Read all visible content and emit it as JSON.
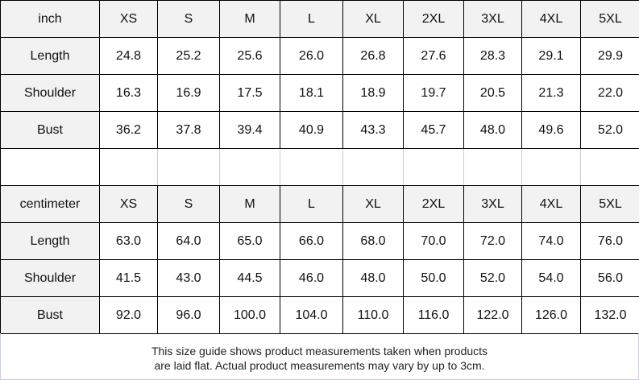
{
  "sizes": [
    "XS",
    "S",
    "M",
    "L",
    "XL",
    "2XL",
    "3XL",
    "4XL",
    "5XL"
  ],
  "inch": {
    "unit": "inch",
    "rows": [
      {
        "label": "Length",
        "values": [
          "24.8",
          "25.2",
          "25.6",
          "26.0",
          "26.8",
          "27.6",
          "28.3",
          "29.1",
          "29.9"
        ]
      },
      {
        "label": "Shoulder",
        "values": [
          "16.3",
          "16.9",
          "17.5",
          "18.1",
          "18.9",
          "19.7",
          "20.5",
          "21.3",
          "22.0"
        ]
      },
      {
        "label": "Bust",
        "values": [
          "36.2",
          "37.8",
          "39.4",
          "40.9",
          "43.3",
          "45.7",
          "48.0",
          "49.6",
          "52.0"
        ]
      }
    ]
  },
  "cm": {
    "unit": "centimeter",
    "rows": [
      {
        "label": "Length",
        "values": [
          "63.0",
          "64.0",
          "65.0",
          "66.0",
          "68.0",
          "70.0",
          "72.0",
          "74.0",
          "76.0"
        ]
      },
      {
        "label": "Shoulder",
        "values": [
          "41.5",
          "43.0",
          "44.5",
          "46.0",
          "48.0",
          "50.0",
          "52.0",
          "54.0",
          "56.0"
        ]
      },
      {
        "label": "Bust",
        "values": [
          "92.0",
          "96.0",
          "100.0",
          "104.0",
          "110.0",
          "116.0",
          "122.0",
          "126.0",
          "132.0"
        ]
      }
    ]
  },
  "footer": {
    "line1": "This size guide shows product measurements taken when products",
    "line2": "are laid flat. Actual product measurements may vary by up to 3cm."
  }
}
